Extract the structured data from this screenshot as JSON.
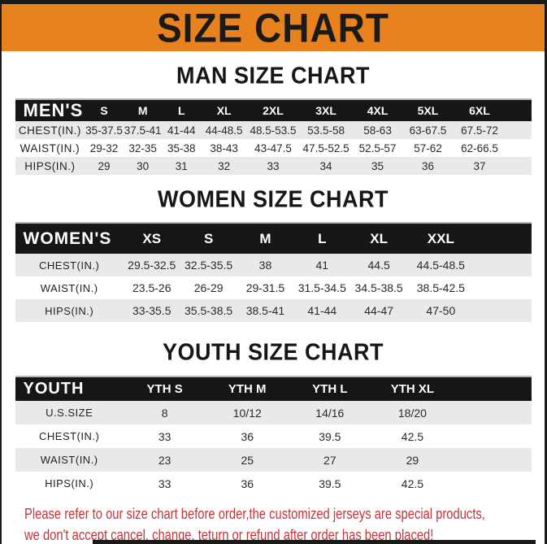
{
  "banner": {
    "title": "SIZE CHART",
    "bg_color": "#e8821e",
    "text_color": "#1a1a1a"
  },
  "sections": [
    {
      "id": "men",
      "heading": "MAN SIZE CHART",
      "table": {
        "label": "MEN'S",
        "columns": [
          "S",
          "M",
          "L",
          "XL",
          "2XL",
          "3XL",
          "4XL",
          "5XL",
          "6XL"
        ],
        "rows": [
          {
            "label": "CHEST(IN.)",
            "values": [
              "35-37.5",
              "37.5-41",
              "41-44",
              "44-48.5",
              "48.5-53.5",
              "53.5-58",
              "58-63",
              "63-67.5",
              "67.5-72"
            ]
          },
          {
            "label": "WAIST(IN.)",
            "values": [
              "29-32",
              "32-35",
              "35-38",
              "38-43",
              "43-47.5",
              "47.5-52.5",
              "52.5-57",
              "57-62",
              "62-66.5"
            ]
          },
          {
            "label": "HIPS(IN.)",
            "values": [
              "29",
              "30",
              "31",
              "32",
              "33",
              "34",
              "35",
              "36",
              "37"
            ]
          }
        ]
      }
    },
    {
      "id": "women",
      "heading": "WOMEN SIZE CHART",
      "table": {
        "label": "WOMEN'S",
        "columns": [
          "XS",
          "S",
          "M",
          "L",
          "XL",
          "XXL"
        ],
        "rows": [
          {
            "label": "CHEST(IN.)",
            "values": [
              "29.5-32.5",
              "32.5-35.5",
              "38",
              "41",
              "44.5",
              "44.5-48.5"
            ]
          },
          {
            "label": "WAIST(IN.)",
            "values": [
              "23.5-26",
              "26-29",
              "29-31.5",
              "31.5-34.5",
              "34.5-38.5",
              "38.5-42.5"
            ]
          },
          {
            "label": "HIPS(IN.)",
            "values": [
              "33-35.5",
              "35.5-38.5",
              "38.5-41",
              "41-44",
              "44-47",
              "47-50"
            ]
          }
        ]
      }
    },
    {
      "id": "youth",
      "heading": "YOUTH SIZE CHART",
      "table": {
        "label": "YOUTH",
        "columns": [
          "YTH S",
          "YTH M",
          "YTH L",
          "YTH XL"
        ],
        "rows": [
          {
            "label": "U.S.SIZE",
            "values": [
              "8",
              "10/12",
              "14/16",
              "18/20"
            ]
          },
          {
            "label": "CHEST(IN.)",
            "values": [
              "33",
              "36",
              "39.5",
              "42.5"
            ]
          },
          {
            "label": "WAIST(IN.)",
            "values": [
              "23",
              "25",
              "27",
              "29"
            ]
          },
          {
            "label": "HIPS(IN.)",
            "values": [
              "33",
              "36",
              "39.5",
              "42.5"
            ]
          }
        ]
      }
    }
  ],
  "footer": {
    "line1": "Please refer to our size chart before order,the customized jerseys are special products,",
    "line2": "we don't accept cancel, change, teturn or refund after order has been placed!",
    "text_color": "#bf363c"
  }
}
